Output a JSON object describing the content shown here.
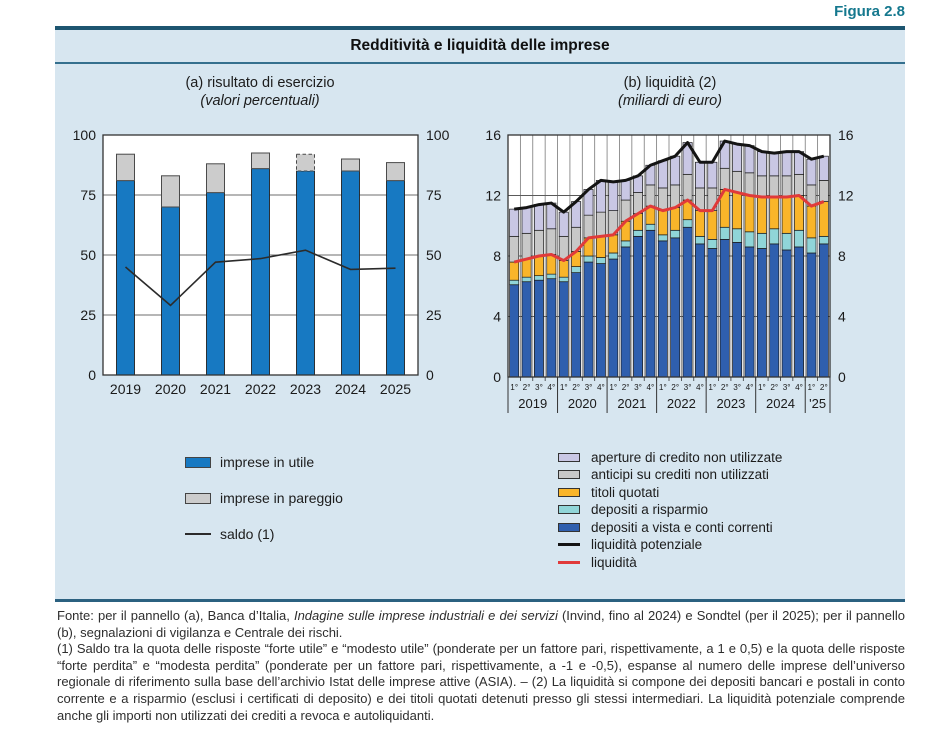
{
  "figure_label": "Figura 2.8",
  "title": "Redditività e liquidità delle imprese",
  "panel_a": {
    "title": "(a) risultato di esercizio",
    "subtitle": "(valori percentuali)",
    "legend": [
      {
        "label": "imprese in utile",
        "swatch": "fill",
        "color": "#1779c2"
      },
      {
        "label": "imprese in pareggio",
        "swatch": "fill",
        "color": "#cccccc"
      },
      {
        "label": "saldo (1)",
        "swatch": "line",
        "color": "#2b2b2b"
      }
    ]
  },
  "panel_b": {
    "title": "(b) liquidità (2)",
    "subtitle": "(miliardi di euro)",
    "legend": [
      {
        "label": "aperture di credito non utilizzate",
        "swatch": "fill",
        "color": "#c9c7e4"
      },
      {
        "label": "anticipi su crediti non utilizzati",
        "swatch": "fill",
        "color": "#c8c8c8"
      },
      {
        "label": "titoli quotati",
        "swatch": "fill",
        "color": "#f9b52a"
      },
      {
        "label": "depositi a risparmio",
        "swatch": "fill",
        "color": "#90d5d8"
      },
      {
        "label": "depositi a vista e conti correnti",
        "swatch": "fill",
        "color": "#2f5fae"
      },
      {
        "label": "liquidità potenziale",
        "swatch": "line",
        "color": "#141414"
      },
      {
        "label": "liquidità",
        "swatch": "line",
        "color": "#e03a3a"
      }
    ]
  },
  "chart_data": [
    {
      "type": "bar",
      "panel": "a",
      "title": "(a) risultato di esercizio",
      "subtitle": "(valori percentuali)",
      "categories": [
        "2019",
        "2020",
        "2021",
        "2022",
        "2023",
        "2024",
        "2025"
      ],
      "series": [
        {
          "name": "imprese in utile",
          "color": "#1779c2",
          "values": [
            81,
            70,
            76,
            86,
            85,
            85,
            81
          ]
        },
        {
          "name": "imprese in pareggio",
          "color": "#cccccc",
          "values": [
            11,
            13,
            12,
            6.5,
            7,
            5,
            7.5
          ],
          "dashed_categories": [
            "2023"
          ]
        }
      ],
      "line_series": [
        {
          "name": "saldo (1)",
          "color": "#2b2b2b",
          "values": [
            45,
            29,
            47,
            48.5,
            52,
            44,
            44.5
          ]
        }
      ],
      "ylim": [
        0,
        100
      ],
      "yticks": [
        0,
        25,
        50,
        75,
        100
      ],
      "grid": "horizontal",
      "axis_both_sides": true
    },
    {
      "type": "stacked-bar",
      "panel": "b",
      "title": "(b) liquidità (2)",
      "subtitle": "(miliardi di euro)",
      "quarter_labels": [
        "1°",
        "2°",
        "3°",
        "4°",
        "1°",
        "2°",
        "3°",
        "4°",
        "1°",
        "2°",
        "3°",
        "4°",
        "1°",
        "2°",
        "3°",
        "4°",
        "1°",
        "2°",
        "3°",
        "4°",
        "1°",
        "2°",
        "3°",
        "4°",
        "1°",
        "2°"
      ],
      "year_groups": [
        {
          "label": "2019",
          "quarters": 4
        },
        {
          "label": "2020",
          "quarters": 4
        },
        {
          "label": "2021",
          "quarters": 4
        },
        {
          "label": "2022",
          "quarters": 4
        },
        {
          "label": "2023",
          "quarters": 4
        },
        {
          "label": "2024",
          "quarters": 4
        },
        {
          "label": "'25",
          "quarters": 2
        }
      ],
      "series": [
        {
          "name": "depositi a vista e conti correnti",
          "color": "#2f5fae",
          "values": [
            6.1,
            6.3,
            6.4,
            6.5,
            6.3,
            6.9,
            7.6,
            7.5,
            7.8,
            8.6,
            9.3,
            9.7,
            9.0,
            9.2,
            9.9,
            8.8,
            8.5,
            9.1,
            8.9,
            8.6,
            8.5,
            8.8,
            8.4,
            8.6,
            8.2,
            8.8
          ]
        },
        {
          "name": "depositi a risparmio",
          "color": "#90d5d8",
          "values": [
            0.3,
            0.3,
            0.3,
            0.3,
            0.3,
            0.4,
            0.4,
            0.4,
            0.4,
            0.4,
            0.4,
            0.4,
            0.4,
            0.5,
            0.5,
            0.5,
            0.6,
            0.8,
            0.9,
            1.0,
            1.0,
            1.0,
            1.1,
            1.1,
            1.0,
            0.5
          ]
        },
        {
          "name": "titoli quotati",
          "color": "#f9b52a",
          "values": [
            1.2,
            1.2,
            1.3,
            1.3,
            1.1,
            1.0,
            1.2,
            1.4,
            1.2,
            1.3,
            1.1,
            1.2,
            1.6,
            1.5,
            1.3,
            1.7,
            1.9,
            2.5,
            2.4,
            2.4,
            2.4,
            2.1,
            2.4,
            2.3,
            2.1,
            2.3
          ]
        },
        {
          "name": "anticipi su crediti non utilizzati",
          "color": "#c8c8c8",
          "values": [
            1.7,
            1.7,
            1.7,
            1.7,
            1.6,
            1.6,
            1.5,
            1.6,
            1.6,
            1.4,
            1.4,
            1.4,
            1.5,
            1.5,
            1.7,
            1.5,
            1.5,
            1.4,
            1.4,
            1.5,
            1.4,
            1.4,
            1.4,
            1.4,
            1.4,
            1.4
          ]
        },
        {
          "name": "aperture di credito non utilizzate",
          "color": "#c9c7e4",
          "values": [
            1.8,
            1.7,
            1.7,
            1.7,
            1.6,
            1.7,
            1.7,
            2.1,
            1.9,
            1.3,
            1.1,
            1.3,
            1.8,
            1.9,
            2.1,
            1.7,
            1.7,
            1.8,
            1.8,
            1.8,
            1.6,
            1.5,
            1.6,
            1.5,
            1.7,
            1.6
          ]
        }
      ],
      "line_series": [
        {
          "name": "liquidità",
          "color": "#e03a3a",
          "values": [
            7.6,
            7.8,
            8.0,
            8.1,
            7.7,
            8.3,
            9.2,
            9.3,
            9.4,
            10.3,
            10.8,
            11.3,
            11.0,
            11.2,
            11.7,
            11.0,
            11.0,
            12.4,
            12.2,
            12.0,
            11.9,
            11.9,
            11.9,
            12.0,
            11.3,
            11.6
          ]
        },
        {
          "name": "liquidità potenziale",
          "color": "#141414",
          "values": [
            11.1,
            11.2,
            11.4,
            11.5,
            10.9,
            11.6,
            12.4,
            13.0,
            12.9,
            13.0,
            13.3,
            14.0,
            14.3,
            14.6,
            15.5,
            14.2,
            14.2,
            15.6,
            15.4,
            15.3,
            14.9,
            14.8,
            14.9,
            14.9,
            14.4,
            14.6
          ]
        }
      ],
      "ylim": [
        0,
        16
      ],
      "yticks": [
        0,
        4,
        8,
        12,
        16
      ],
      "grid": "both",
      "axis_both_sides": true
    }
  ],
  "footnote": {
    "source_prefix": "Fonte: per il pannello (a), Banca d’Italia, ",
    "source_italic": "Indagine sulle imprese industriali e dei servizi",
    "source_suffix": " (Invind, fino al 2024) e Sondtel (per il 2025); per il pannello (b), segnalazioni di vigilanza e Centrale dei rischi.",
    "notes": "(1) Saldo tra la quota delle risposte “forte utile” e “modesto utile” (ponderate per un fattore pari, rispettivamente, a 1 e 0,5) e la quota delle risposte “forte perdita” e “modesta perdita” (ponderate per un fattore pari, rispettivamente, a -1 e -0,5), espanse al numero delle imprese dell’universo regionale di riferimento sulla base dell’archivio Istat delle imprese attive (ASIA). – (2) La liquidità si compone dei depositi bancari e postali in conto corrente e a risparmio (esclusi i certificati di deposito) e dei titoli quotati detenuti presso gli stessi intermediari. La liquidità potenziale comprende anche gli importi non utilizzati dei crediti a revoca e autoliquidanti."
  }
}
